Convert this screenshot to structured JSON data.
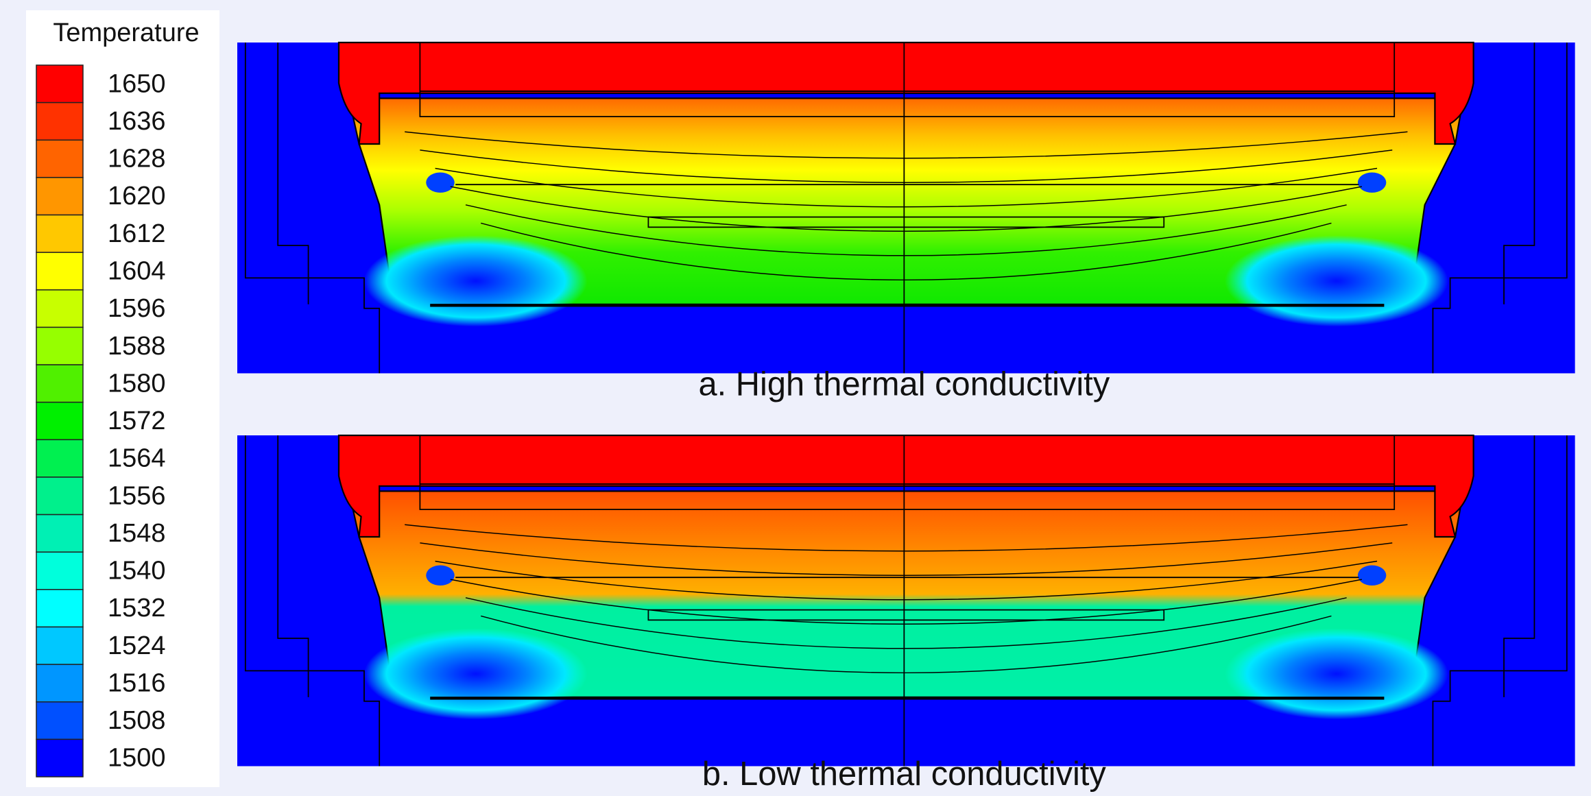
{
  "legend": {
    "title": "Temperature",
    "labels": [
      1650,
      1636,
      1628,
      1620,
      1612,
      1604,
      1596,
      1588,
      1580,
      1572,
      1564,
      1556,
      1548,
      1540,
      1532,
      1524,
      1516,
      1508,
      1500
    ],
    "colors": [
      "#ff0000",
      "#ff3200",
      "#ff6400",
      "#ff9600",
      "#ffc800",
      "#ffff00",
      "#c8ff00",
      "#96ff00",
      "#50f000",
      "#00f000",
      "#00f050",
      "#00f08c",
      "#00f0b4",
      "#00ffdc",
      "#00ffff",
      "#00c8ff",
      "#0096ff",
      "#0050ff",
      "#0000ff"
    ]
  },
  "panels": [
    {
      "caption": "a. High thermal conductivity"
    },
    {
      "caption": "b. Low thermal conductivity"
    }
  ]
}
